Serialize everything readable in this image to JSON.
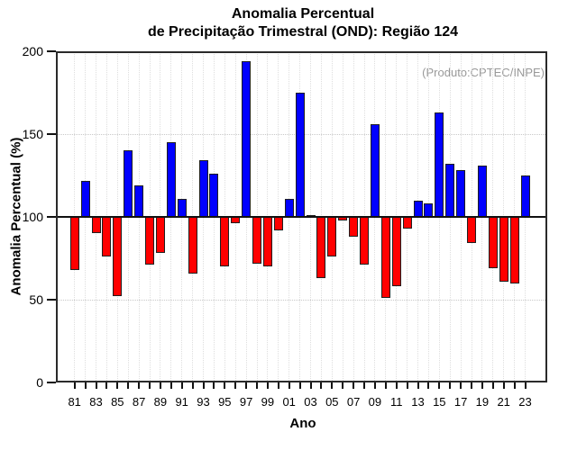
{
  "header": {
    "title_line1": "Anomalia Percentual",
    "title_line2": "de Precipitação Trimestral (OND): Região 124"
  },
  "annotation": {
    "text": "(Produto:CPTEC/INPE)"
  },
  "colors": {
    "bar_above_baseline": "#0000ff",
    "bar_below_baseline": "#ff0000",
    "bar_border": "#1f1f1f",
    "baseline": "#111111",
    "frame": "#2a2a2a",
    "tick": "#111111",
    "grid_horizontal": "#c8c8c8",
    "grid_vertical": "#dedede",
    "annotation_text": "#999999",
    "text": "#000000"
  },
  "chart_data": {
    "type": "bar",
    "title": "Anomalia Percentual de Precipitação Trimestral (OND): Região 124",
    "xlabel": "Ano",
    "ylabel": "Anomalia Percentual (%)",
    "legend": "none",
    "baseline": 100,
    "ylim": [
      0,
      200
    ],
    "yticks": [
      0,
      50,
      100,
      150,
      200
    ],
    "dotted_gridlines_y": [
      50,
      150
    ],
    "grid_vertical_every_year": true,
    "bar_color_rule": "blue if value >= 100, red if value < 100",
    "categories": [
      1981,
      1982,
      1983,
      1984,
      1985,
      1986,
      1987,
      1988,
      1989,
      1990,
      1991,
      1992,
      1993,
      1994,
      1995,
      1996,
      1997,
      1998,
      1999,
      2000,
      2001,
      2002,
      2003,
      2004,
      2005,
      2006,
      2007,
      2008,
      2009,
      2010,
      2011,
      2012,
      2013,
      2014,
      2015,
      2016,
      2017,
      2018,
      2019,
      2020,
      2021,
      2022,
      2023
    ],
    "values": [
      68,
      122,
      90,
      76,
      52,
      140,
      119,
      71,
      78,
      145,
      111,
      66,
      134,
      126,
      70,
      96,
      194,
      72,
      70,
      92,
      111,
      175,
      101,
      63,
      76,
      98,
      88,
      71,
      156,
      51,
      58,
      93,
      110,
      108,
      163,
      132,
      128,
      84,
      131,
      69,
      61,
      60,
      125
    ],
    "xtick_labels": [
      "81",
      "83",
      "85",
      "87",
      "89",
      "91",
      "93",
      "95",
      "97",
      "99",
      "01",
      "03",
      "05",
      "07",
      "09",
      "11",
      "13",
      "15",
      "17",
      "19",
      "21",
      "23"
    ]
  }
}
